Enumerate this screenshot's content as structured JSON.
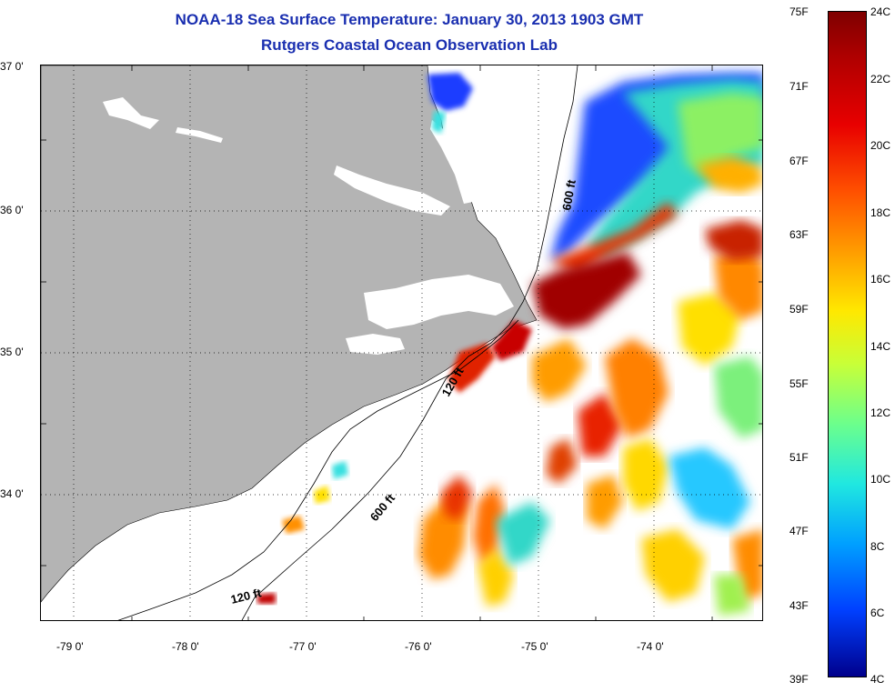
{
  "header": {
    "title": "NOAA-18 Sea Surface Temperature:  January 30, 2013 1903 GMT",
    "subtitle": "Rutgers Coastal Ocean Observation Lab"
  },
  "map": {
    "lat_labels": [
      "37 0'",
      "36 0'",
      "35 0'",
      "34 0'"
    ],
    "lon_labels": [
      "-79 0'",
      "-78 0'",
      "-77 0'",
      "-76 0'",
      "-75 0'",
      "-74 0'"
    ],
    "isobath_labels": [
      "600 ft",
      "120 ft",
      "600 ft",
      "120 ft"
    ],
    "land_color": "#b4b4b4"
  },
  "colorbar": {
    "fahrenheit": [
      "75F",
      "71F",
      "67F",
      "63F",
      "59F",
      "55F",
      "51F",
      "47F",
      "43F",
      "39F"
    ],
    "celsius": [
      "24C",
      "22C",
      "20C",
      "18C",
      "16C",
      "14C",
      "12C",
      "10C",
      "8C",
      "6C",
      "4C"
    ]
  }
}
